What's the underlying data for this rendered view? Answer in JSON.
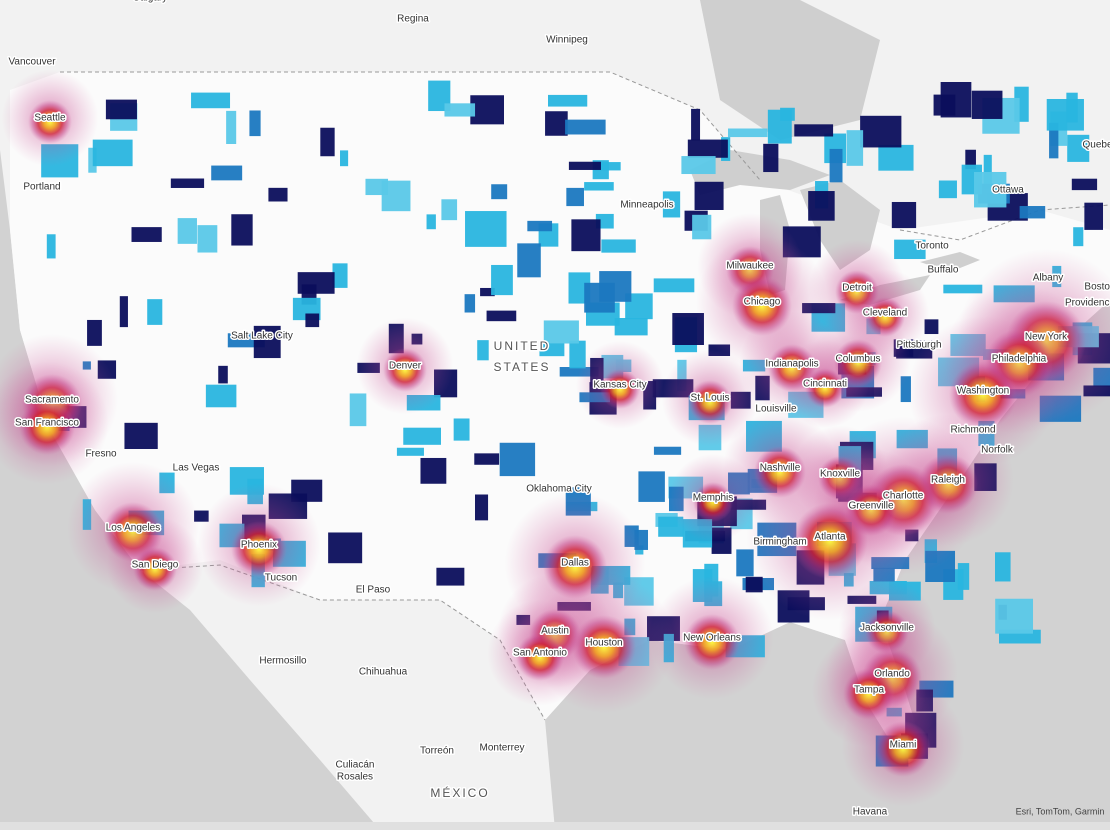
{
  "labels": [
    {
      "text": "Calgary"
    },
    {
      "text": "Regina"
    },
    {
      "text": "Winnipeg"
    },
    {
      "text": "Vancouver"
    },
    {
      "text": "Seattle"
    },
    {
      "text": "Portland"
    },
    {
      "text": "Minneapolis"
    },
    {
      "text": "Ottawa"
    },
    {
      "text": "Quebec"
    },
    {
      "text": "Toronto"
    },
    {
      "text": "Buffalo"
    },
    {
      "text": "Albany"
    },
    {
      "text": "Boston"
    },
    {
      "text": "Providence"
    },
    {
      "text": "Milwaukee"
    },
    {
      "text": "Chicago"
    },
    {
      "text": "Detroit"
    },
    {
      "text": "Cleveland"
    },
    {
      "text": "Salt Lake City"
    },
    {
      "text": "UNITED"
    },
    {
      "text": "STATES"
    },
    {
      "text": "Denver"
    },
    {
      "text": "Sacramento"
    },
    {
      "text": "San Francisco"
    },
    {
      "text": "Pittsburgh"
    },
    {
      "text": "New York"
    },
    {
      "text": "Philadelphia"
    },
    {
      "text": "Indianapolis"
    },
    {
      "text": "Columbus"
    },
    {
      "text": "Cincinnati"
    },
    {
      "text": "Washington"
    },
    {
      "text": "Kansas City"
    },
    {
      "text": "St. Louis"
    },
    {
      "text": "Louisville"
    },
    {
      "text": "Richmond"
    },
    {
      "text": "Fresno"
    },
    {
      "text": "Norfolk"
    },
    {
      "text": "Las Vegas"
    },
    {
      "text": "Nashville"
    },
    {
      "text": "Knoxville"
    },
    {
      "text": "Raleigh"
    },
    {
      "text": "Oklahoma City"
    },
    {
      "text": "Memphis"
    },
    {
      "text": "Charlotte"
    },
    {
      "text": "Greenville"
    },
    {
      "text": "Los Angeles"
    },
    {
      "text": "Atlanta"
    },
    {
      "text": "Birmingham"
    },
    {
      "text": "Phoenix"
    },
    {
      "text": "Dallas"
    },
    {
      "text": "San Diego"
    },
    {
      "text": "Tucson"
    },
    {
      "text": "El Paso"
    },
    {
      "text": "Austin"
    },
    {
      "text": "Jacksonville"
    },
    {
      "text": "Houston"
    },
    {
      "text": "New Orleans"
    },
    {
      "text": "San Antonio"
    },
    {
      "text": "Hermosillo"
    },
    {
      "text": "Chihuahua"
    },
    {
      "text": "Orlando"
    },
    {
      "text": "Tampa"
    },
    {
      "text": "Miami"
    },
    {
      "text": "Monterrey"
    },
    {
      "text": "Torreón"
    },
    {
      "text": "Culiacán"
    },
    {
      "text": "Rosales"
    },
    {
      "text": "MÉXICO"
    },
    {
      "text": "Havana"
    },
    {
      "text": "Esri, TomTom, Garmin"
    }
  ]
}
